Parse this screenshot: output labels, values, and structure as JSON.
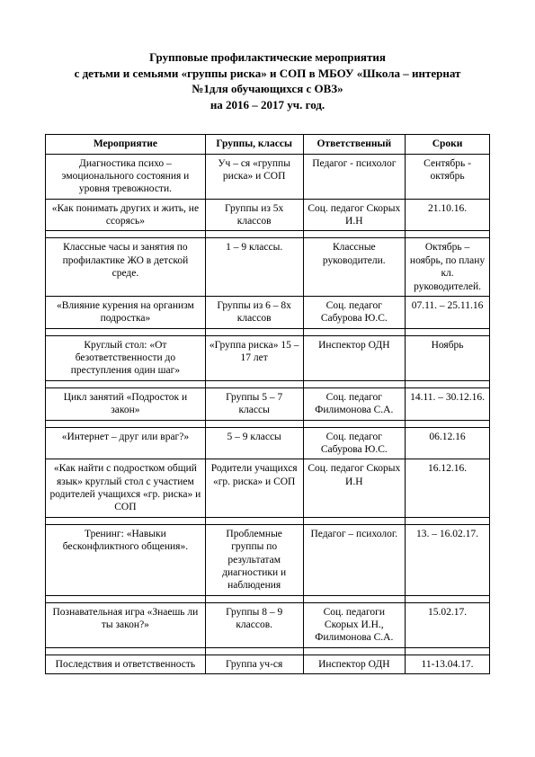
{
  "title": {
    "line1": "Групповые профилактические мероприятия",
    "line2": "с детьми и семьями «группы риска» и СОП в МБОУ «Школа – интернат",
    "line3": "№1для обучающихся с ОВЗ»",
    "line4": "на 2016 – 2017 уч. год."
  },
  "table": {
    "columns": [
      "Мероприятие",
      "Группы, классы",
      "Ответственный",
      "Сроки"
    ],
    "col_widths_pct": [
      36,
      22,
      23,
      19
    ],
    "border_color": "#000000",
    "text_color": "#000000",
    "background_color": "#ffffff",
    "font_family": "Times New Roman",
    "header_fontsize": 11.5,
    "cell_fontsize": 11.5,
    "rows": [
      {
        "event": "Диагностика психо – эмоционального состояния и уровня тревожности.",
        "group": "Уч – ся «группы риска» и СОП",
        "resp": "Педагог - психолог",
        "date": "Сентябрь - октябрь"
      },
      {
        "event": "«Как понимать других и жить, не ссорясь»",
        "group": "Группы из 5х классов",
        "resp": "Соц. педагог Скорых И.Н",
        "date": "21.10.16."
      },
      {
        "event": "Классные часы и занятия по профилактике ЖО в детской среде.",
        "group": "1 – 9 классы.",
        "resp": "Классные руководители.",
        "date": "Октябрь – ноябрь, по плану кл. руководителей."
      },
      {
        "event": "«Влияние курения на организм подростка»",
        "group": "Группы из 6 – 8х классов",
        "resp": "Соц. педагог Сабурова Ю.С.",
        "date": "07.11. – 25.11.16"
      },
      {
        "event": "Круглый стол: «От безответственности до преступления один шаг»",
        "group": "«Группа риска» 15 – 17 лет",
        "resp": "Инспектор ОДН",
        "date": "Ноябрь"
      },
      {
        "event": "Цикл занятий «Подросток и закон»",
        "group": "Группы 5 – 7 классы",
        "resp": "Соц. педагог Филимонова С.А.",
        "date": "14.11. – 30.12.16."
      },
      {
        "event": "«Интернет – друг или враг?»",
        "group": "5 – 9 классы",
        "resp": "Соц. педагог Сабурова Ю.С.",
        "date": "06.12.16"
      },
      {
        "event": "«Как найти с подростком общий язык» круглый стол с участием родителей учащихся «гр. риска» и СОП",
        "group": "Родители учащихся «гр. риска» и СОП",
        "resp": "Соц. педагог Скорых И.Н",
        "date": "16.12.16."
      },
      {
        "event": "Тренинг: «Навыки бесконфликтного общения».",
        "group": "Проблемные группы по результатам диагностики и наблюдения",
        "resp": "Педагог – психолог.",
        "date": "13. – 16.02.17."
      },
      {
        "event": "Познавательная игра «Знаешь ли ты закон?»",
        "group": "Группы 8 – 9 классов.",
        "resp": "Соц. педагоги Скорых И.Н., Филимонова С.А.",
        "date": "15.02.17."
      },
      {
        "event": "Последствия и ответственность",
        "group": "Группа уч-ся",
        "resp": "Инспектор ОДН",
        "date": "11-13.04.17."
      }
    ],
    "spacer_after_rows": [
      1,
      3,
      4,
      5,
      7,
      8,
      9
    ]
  }
}
